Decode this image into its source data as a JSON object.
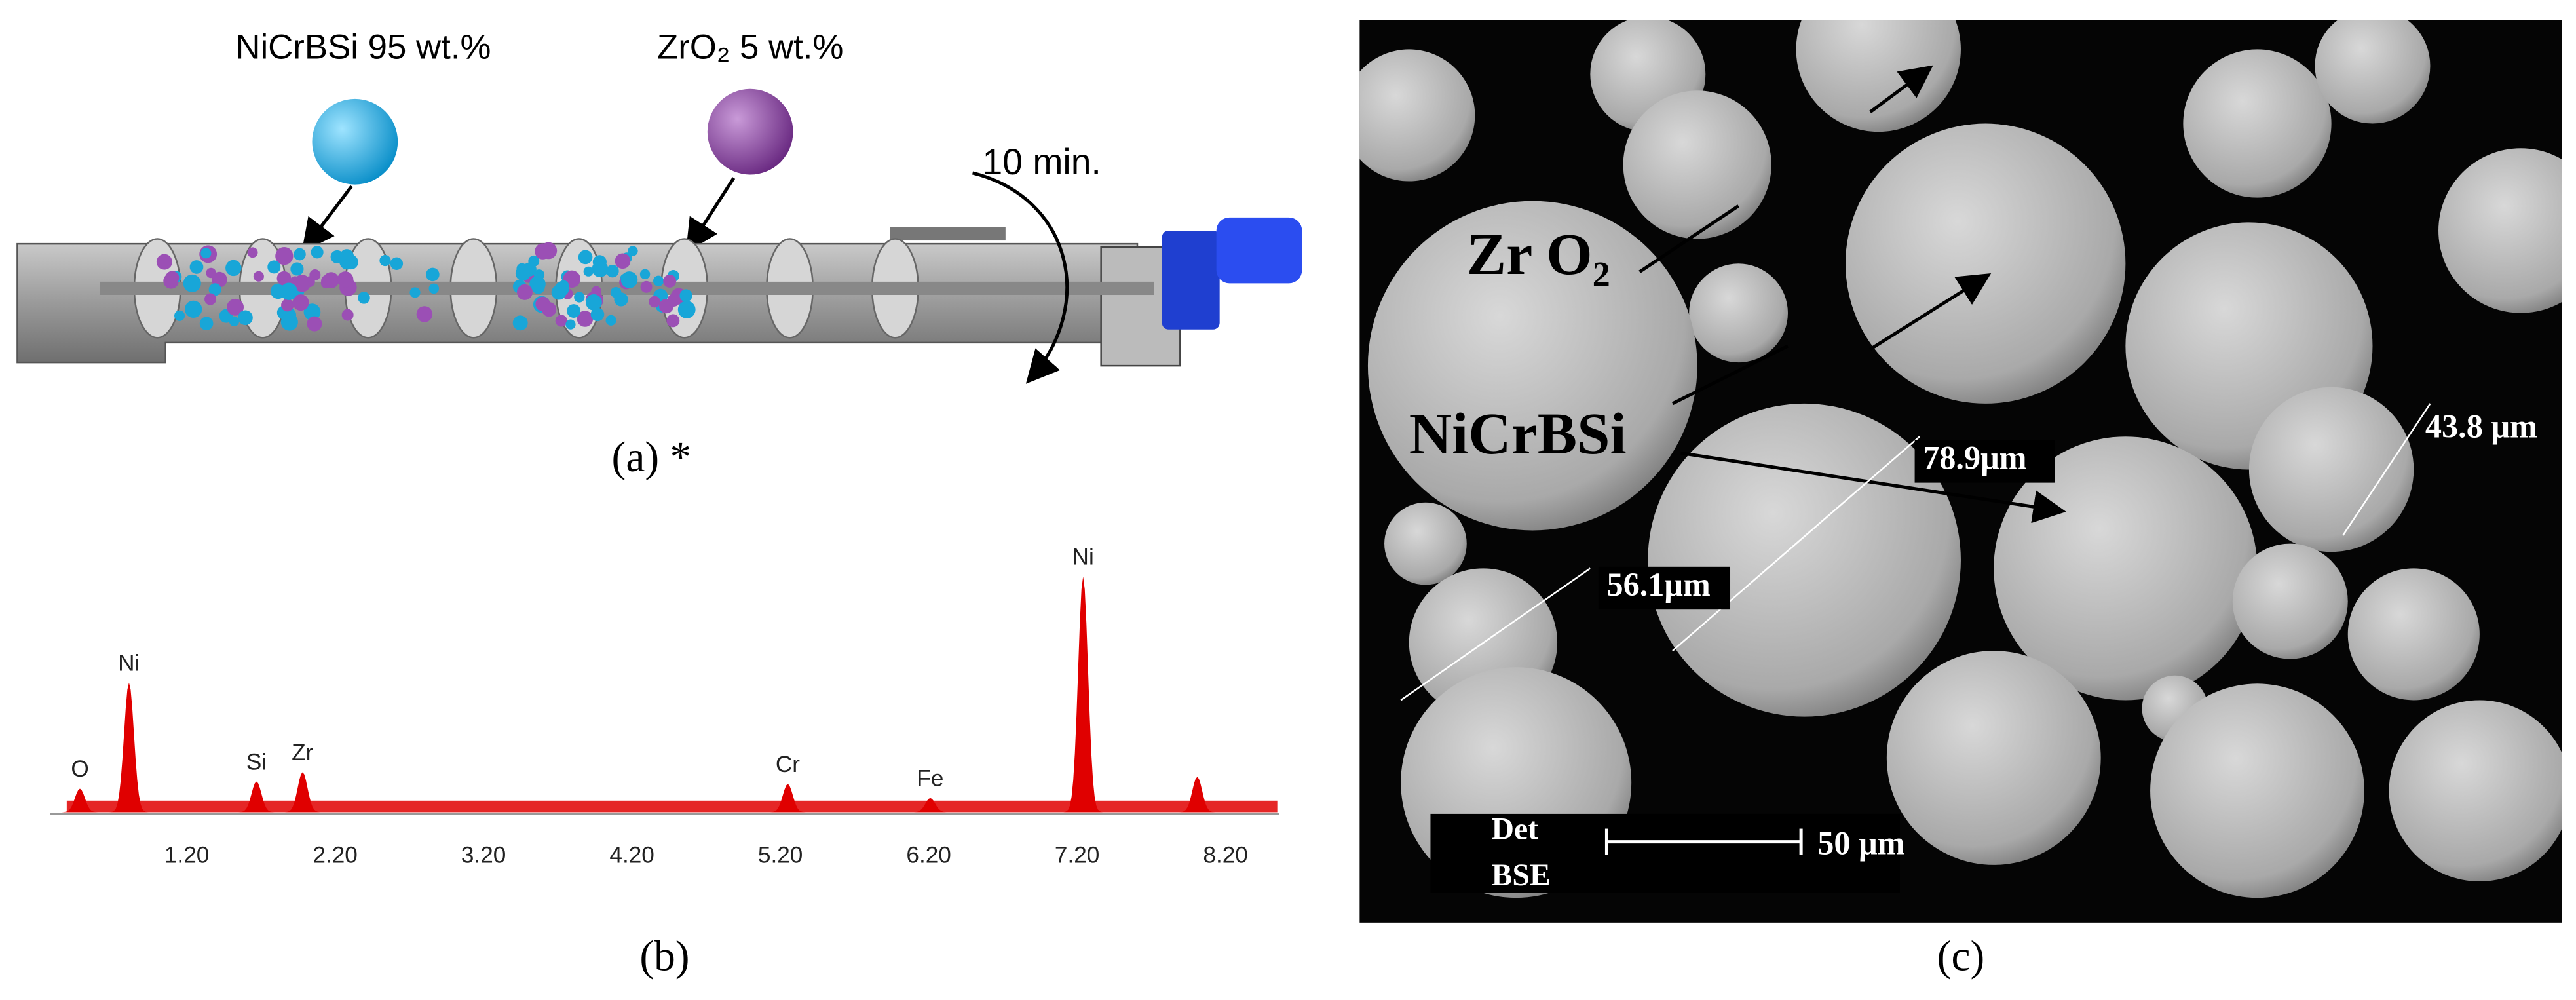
{
  "panel_a": {
    "labels": [
      "NiCrBSi 95 wt.%",
      "ZrO₂ 5 wt.%"
    ],
    "time": "10 min.",
    "caption": "(a) *"
  },
  "panel_b": {
    "caption": "(b)",
    "xlim": [
      0.28,
      8.56
    ],
    "xticks": [
      {
        "value": 1.2,
        "label": "1.20"
      },
      {
        "value": 2.2,
        "label": "2.20"
      },
      {
        "value": 3.2,
        "label": "3.20"
      },
      {
        "value": 4.2,
        "label": "4.20"
      },
      {
        "value": 5.2,
        "label": "5.20"
      },
      {
        "value": 6.2,
        "label": "6.20"
      },
      {
        "value": 7.2,
        "label": "7.20"
      },
      {
        "value": 8.2,
        "label": "8.20"
      }
    ],
    "peaks": [
      {
        "element": "O",
        "x": 0.48,
        "height": 10
      },
      {
        "element": "Ni",
        "x": 0.81,
        "height": 55
      },
      {
        "element": "Si",
        "x": 1.67,
        "height": 13
      },
      {
        "element": "Zr",
        "x": 1.98,
        "height": 17
      },
      {
        "element": "Cr",
        "x": 5.25,
        "height": 12
      },
      {
        "element": "Fe",
        "x": 6.21,
        "height": 6
      },
      {
        "element": "Ni",
        "x": 7.24,
        "height": 100
      },
      {
        "element": null,
        "x": 8.01,
        "height": 15
      }
    ]
  },
  "panel_c": {
    "caption": "(c)",
    "phases": [
      "Zr O₂",
      "NiCrBSi"
    ],
    "sizes": [
      "78.9μm",
      "43.8 μm",
      "56.1μm"
    ],
    "detector": [
      "Det",
      "BSE"
    ],
    "scale_bar": "50 μm"
  }
}
